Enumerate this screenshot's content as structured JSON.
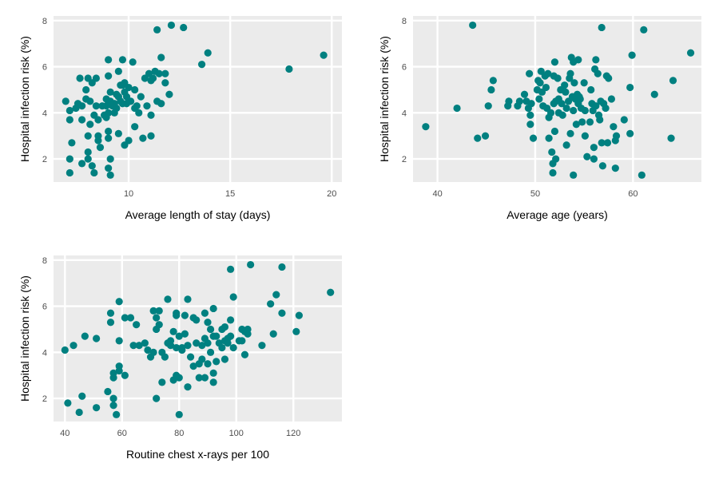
{
  "style": {
    "point_color": "#008080",
    "panel_bg": "#ebebeb",
    "grid_color": "#ffffff"
  },
  "chart_data": [
    {
      "type": "scatter",
      "xlabel": "Average length of stay (days)",
      "ylabel": "Hospital infection risk (%)",
      "xlim": [
        6.3,
        20.5
      ],
      "ylim": [
        1.0,
        8.2
      ],
      "xticks": [
        10,
        15,
        20
      ],
      "yticks": [
        2,
        4,
        6,
        8
      ],
      "grid": true,
      "points": [
        [
          6.9,
          4.5
        ],
        [
          7.1,
          4.1
        ],
        [
          7.1,
          3.7
        ],
        [
          7.2,
          2.7
        ],
        [
          7.1,
          2.0
        ],
        [
          7.1,
          1.4
        ],
        [
          7.4,
          4.2
        ],
        [
          7.5,
          4.4
        ],
        [
          7.6,
          5.5
        ],
        [
          7.7,
          4.3
        ],
        [
          7.7,
          3.7
        ],
        [
          7.7,
          1.8
        ],
        [
          7.9,
          5.0
        ],
        [
          7.9,
          4.6
        ],
        [
          8.0,
          5.5
        ],
        [
          8.0,
          3.0
        ],
        [
          8.0,
          2.3
        ],
        [
          8.0,
          2.0
        ],
        [
          8.1,
          4.5
        ],
        [
          8.2,
          5.3
        ],
        [
          8.1,
          3.5
        ],
        [
          8.2,
          1.7
        ],
        [
          8.3,
          1.4
        ],
        [
          8.4,
          5.5
        ],
        [
          8.4,
          4.3
        ],
        [
          8.3,
          3.9
        ],
        [
          8.5,
          3.7
        ],
        [
          8.5,
          3.0
        ],
        [
          8.5,
          2.8
        ],
        [
          8.6,
          2.5
        ],
        [
          8.7,
          4.3
        ],
        [
          8.8,
          3.9
        ],
        [
          8.9,
          4.6
        ],
        [
          8.9,
          4.3
        ],
        [
          8.9,
          3.8
        ],
        [
          9.0,
          6.3
        ],
        [
          9.0,
          5.6
        ],
        [
          9.0,
          4.0
        ],
        [
          9.0,
          3.2
        ],
        [
          9.0,
          2.9
        ],
        [
          9.1,
          4.9
        ],
        [
          9.1,
          4.5
        ],
        [
          9.1,
          2.0
        ],
        [
          9.0,
          1.6
        ],
        [
          9.1,
          1.3
        ],
        [
          9.2,
          4.3
        ],
        [
          9.3,
          4.4
        ],
        [
          9.3,
          4.0
        ],
        [
          9.4,
          4.8
        ],
        [
          9.4,
          4.2
        ],
        [
          9.5,
          5.8
        ],
        [
          9.5,
          4.7
        ],
        [
          9.5,
          3.1
        ],
        [
          9.6,
          5.2
        ],
        [
          9.6,
          4.5
        ],
        [
          9.7,
          6.3
        ],
        [
          9.7,
          5.2
        ],
        [
          9.7,
          4.4
        ],
        [
          9.8,
          5.3
        ],
        [
          9.8,
          4.9
        ],
        [
          9.8,
          2.6
        ],
        [
          9.9,
          4.7
        ],
        [
          9.9,
          4.4
        ],
        [
          10.0,
          5.1
        ],
        [
          10.0,
          2.8
        ],
        [
          10.1,
          4.5
        ],
        [
          10.2,
          6.2
        ],
        [
          10.3,
          5.0
        ],
        [
          10.3,
          4.2
        ],
        [
          10.4,
          4.3
        ],
        [
          10.3,
          3.4
        ],
        [
          10.5,
          4.0
        ],
        [
          10.6,
          4.7
        ],
        [
          10.7,
          2.9
        ],
        [
          10.8,
          5.5
        ],
        [
          10.9,
          4.3
        ],
        [
          11.0,
          5.7
        ],
        [
          11.1,
          5.4
        ],
        [
          11.1,
          3.9
        ],
        [
          11.1,
          3.0
        ],
        [
          11.2,
          5.5
        ],
        [
          11.3,
          5.8
        ],
        [
          11.4,
          4.5
        ],
        [
          11.4,
          7.6
        ],
        [
          11.5,
          5.7
        ],
        [
          11.6,
          6.4
        ],
        [
          11.6,
          4.4
        ],
        [
          11.8,
          5.7
        ],
        [
          11.8,
          5.3
        ],
        [
          12.0,
          4.8
        ],
        [
          12.1,
          7.8
        ],
        [
          12.7,
          7.7
        ],
        [
          13.6,
          6.1
        ],
        [
          13.9,
          6.6
        ],
        [
          17.9,
          5.9
        ],
        [
          19.6,
          6.5
        ]
      ]
    },
    {
      "type": "scatter",
      "xlabel": "Average age (years)",
      "ylabel": "Hospital infection risk (%)",
      "xlim": [
        37.5,
        67.0
      ],
      "ylim": [
        1.0,
        8.2
      ],
      "xticks": [
        40,
        50,
        60
      ],
      "yticks": [
        2,
        4,
        6,
        8
      ],
      "grid": true,
      "points": [
        [
          38.8,
          3.4
        ],
        [
          42.0,
          4.2
        ],
        [
          43.6,
          7.8
        ],
        [
          44.1,
          2.9
        ],
        [
          44.9,
          3.0
        ],
        [
          45.2,
          4.3
        ],
        [
          45.5,
          5.0
        ],
        [
          45.7,
          5.4
        ],
        [
          47.2,
          4.3
        ],
        [
          47.3,
          4.5
        ],
        [
          48.2,
          4.3
        ],
        [
          48.4,
          4.5
        ],
        [
          48.9,
          4.8
        ],
        [
          49.1,
          4.5
        ],
        [
          49.3,
          4.2
        ],
        [
          49.4,
          5.7
        ],
        [
          49.5,
          3.9
        ],
        [
          49.5,
          3.5
        ],
        [
          49.6,
          4.4
        ],
        [
          49.8,
          2.9
        ],
        [
          50.2,
          5.0
        ],
        [
          50.3,
          5.4
        ],
        [
          50.4,
          4.6
        ],
        [
          50.5,
          5.3
        ],
        [
          50.6,
          5.8
        ],
        [
          50.7,
          4.9
        ],
        [
          50.8,
          4.3
        ],
        [
          51.0,
          5.6
        ],
        [
          51.1,
          5.1
        ],
        [
          51.2,
          4.2
        ],
        [
          51.3,
          5.7
        ],
        [
          51.4,
          3.8
        ],
        [
          51.4,
          2.9
        ],
        [
          51.6,
          4.0
        ],
        [
          51.7,
          2.3
        ],
        [
          51.8,
          1.8
        ],
        [
          51.8,
          1.4
        ],
        [
          51.9,
          5.6
        ],
        [
          51.9,
          4.4
        ],
        [
          52.0,
          6.2
        ],
        [
          52.1,
          4.5
        ],
        [
          52.0,
          3.2
        ],
        [
          52.1,
          2.0
        ],
        [
          52.3,
          5.5
        ],
        [
          52.4,
          4.6
        ],
        [
          52.4,
          4.0
        ],
        [
          52.6,
          5.0
        ],
        [
          52.7,
          4.4
        ],
        [
          52.8,
          3.9
        ],
        [
          53.0,
          5.2
        ],
        [
          53.1,
          4.9
        ],
        [
          53.2,
          4.2
        ],
        [
          53.2,
          2.6
        ],
        [
          53.4,
          4.5
        ],
        [
          53.5,
          5.5
        ],
        [
          53.6,
          5.7
        ],
        [
          53.6,
          3.1
        ],
        [
          53.7,
          6.4
        ],
        [
          53.8,
          4.7
        ],
        [
          53.9,
          6.2
        ],
        [
          53.9,
          4.1
        ],
        [
          53.9,
          1.3
        ],
        [
          54.0,
          5.3
        ],
        [
          54.1,
          4.6
        ],
        [
          54.2,
          3.5
        ],
        [
          54.3,
          4.8
        ],
        [
          54.4,
          6.3
        ],
        [
          54.4,
          4.4
        ],
        [
          54.5,
          4.7
        ],
        [
          54.6,
          4.6
        ],
        [
          54.7,
          4.2
        ],
        [
          54.8,
          3.6
        ],
        [
          55.0,
          5.3
        ],
        [
          55.1,
          4.1
        ],
        [
          55.1,
          3.0
        ],
        [
          55.3,
          2.1
        ],
        [
          55.6,
          3.6
        ],
        [
          55.7,
          5.0
        ],
        [
          55.8,
          4.4
        ],
        [
          55.9,
          4.1
        ],
        [
          56.0,
          2.5
        ],
        [
          56.0,
          2.0
        ],
        [
          56.1,
          5.9
        ],
        [
          56.2,
          6.3
        ],
        [
          56.2,
          4.3
        ],
        [
          56.4,
          5.7
        ],
        [
          56.5,
          3.9
        ],
        [
          56.6,
          3.7
        ],
        [
          56.7,
          4.5
        ],
        [
          56.8,
          7.7
        ],
        [
          56.8,
          2.7
        ],
        [
          56.9,
          1.7
        ],
        [
          57.0,
          4.4
        ],
        [
          57.2,
          4.2
        ],
        [
          57.3,
          5.6
        ],
        [
          57.4,
          2.7
        ],
        [
          57.5,
          5.5
        ],
        [
          57.8,
          4.6
        ],
        [
          58.0,
          3.4
        ],
        [
          58.2,
          2.8
        ],
        [
          58.2,
          1.6
        ],
        [
          58.3,
          3.0
        ],
        [
          59.1,
          3.7
        ],
        [
          59.7,
          5.1
        ],
        [
          59.7,
          3.1
        ],
        [
          59.9,
          6.5
        ],
        [
          60.9,
          1.3
        ],
        [
          61.1,
          7.6
        ],
        [
          62.2,
          4.8
        ],
        [
          63.9,
          2.9
        ],
        [
          64.1,
          5.4
        ],
        [
          65.9,
          6.6
        ]
      ]
    },
    {
      "type": "scatter",
      "xlabel": "Routine chest x-rays per 100",
      "ylabel": "Hospital infection risk (%)",
      "xlim": [
        36.0,
        137.0
      ],
      "ylim": [
        1.0,
        8.2
      ],
      "xticks": [
        40,
        60,
        80,
        100,
        120
      ],
      "yticks": [
        2,
        4,
        6,
        8
      ],
      "grid": true,
      "points": [
        [
          40,
          4.1
        ],
        [
          41,
          1.8
        ],
        [
          43,
          4.3
        ],
        [
          45,
          1.4
        ],
        [
          46,
          2.1
        ],
        [
          47,
          4.7
        ],
        [
          51,
          4.6
        ],
        [
          51,
          1.6
        ],
        [
          55,
          2.3
        ],
        [
          56,
          5.7
        ],
        [
          56,
          5.3
        ],
        [
          57,
          3.1
        ],
        [
          57,
          2.9
        ],
        [
          57,
          2.0
        ],
        [
          57,
          1.7
        ],
        [
          58,
          1.3
        ],
        [
          59,
          6.2
        ],
        [
          59,
          4.5
        ],
        [
          59,
          3.4
        ],
        [
          59,
          3.2
        ],
        [
          61,
          5.5
        ],
        [
          61,
          3.0
        ],
        [
          63,
          5.5
        ],
        [
          64,
          4.3
        ],
        [
          65,
          5.2
        ],
        [
          66,
          4.3
        ],
        [
          68,
          4.4
        ],
        [
          69,
          4.1
        ],
        [
          70,
          3.8
        ],
        [
          71,
          5.8
        ],
        [
          71,
          4.0
        ],
        [
          72,
          5.5
        ],
        [
          72,
          5.0
        ],
        [
          72,
          2.0
        ],
        [
          73,
          5.8
        ],
        [
          73,
          5.2
        ],
        [
          74,
          4.0
        ],
        [
          74,
          2.7
        ],
        [
          75,
          3.8
        ],
        [
          76,
          6.3
        ],
        [
          76,
          4.4
        ],
        [
          77,
          4.5
        ],
        [
          77,
          4.3
        ],
        [
          78,
          4.9
        ],
        [
          78,
          2.8
        ],
        [
          79,
          5.7
        ],
        [
          79,
          5.6
        ],
        [
          79,
          4.2
        ],
        [
          79,
          3.0
        ],
        [
          80,
          4.7
        ],
        [
          80,
          2.9
        ],
        [
          80,
          1.3
        ],
        [
          81,
          4.2
        ],
        [
          81,
          4.1
        ],
        [
          82,
          4.8
        ],
        [
          82,
          5.6
        ],
        [
          83,
          6.3
        ],
        [
          83,
          4.3
        ],
        [
          83,
          2.5
        ],
        [
          84,
          3.8
        ],
        [
          85,
          5.5
        ],
        [
          85,
          3.4
        ],
        [
          86,
          5.4
        ],
        [
          86,
          4.4
        ],
        [
          87,
          3.5
        ],
        [
          87,
          2.9
        ],
        [
          88,
          4.3
        ],
        [
          88,
          3.7
        ],
        [
          89,
          4.6
        ],
        [
          89,
          5.7
        ],
        [
          89,
          2.9
        ],
        [
          90,
          5.3
        ],
        [
          90,
          4.4
        ],
        [
          90,
          3.5
        ],
        [
          91,
          4.0
        ],
        [
          91,
          5.0
        ],
        [
          92,
          5.9
        ],
        [
          92,
          3.1
        ],
        [
          92,
          4.7
        ],
        [
          92,
          2.7
        ],
        [
          93,
          4.7
        ],
        [
          93,
          3.6
        ],
        [
          94,
          4.4
        ],
        [
          95,
          5.0
        ],
        [
          95,
          4.2
        ],
        [
          96,
          4.5
        ],
        [
          96,
          5.1
        ],
        [
          96,
          3.7
        ],
        [
          97,
          4.6
        ],
        [
          97,
          4.4
        ],
        [
          98,
          7.6
        ],
        [
          98,
          5.4
        ],
        [
          98,
          4.7
        ],
        [
          99,
          6.4
        ],
        [
          99,
          4.2
        ],
        [
          101,
          4.5
        ],
        [
          102,
          5.0
        ],
        [
          102,
          4.5
        ],
        [
          103,
          4.9
        ],
        [
          103,
          3.9
        ],
        [
          104,
          5.0
        ],
        [
          105,
          7.8
        ],
        [
          109,
          4.3
        ],
        [
          112,
          6.1
        ],
        [
          113,
          4.8
        ],
        [
          114,
          6.5
        ],
        [
          116,
          7.7
        ],
        [
          116,
          5.7
        ],
        [
          121,
          4.9
        ],
        [
          122,
          5.6
        ],
        [
          133,
          6.6
        ],
        [
          104,
          4.8
        ]
      ]
    }
  ]
}
